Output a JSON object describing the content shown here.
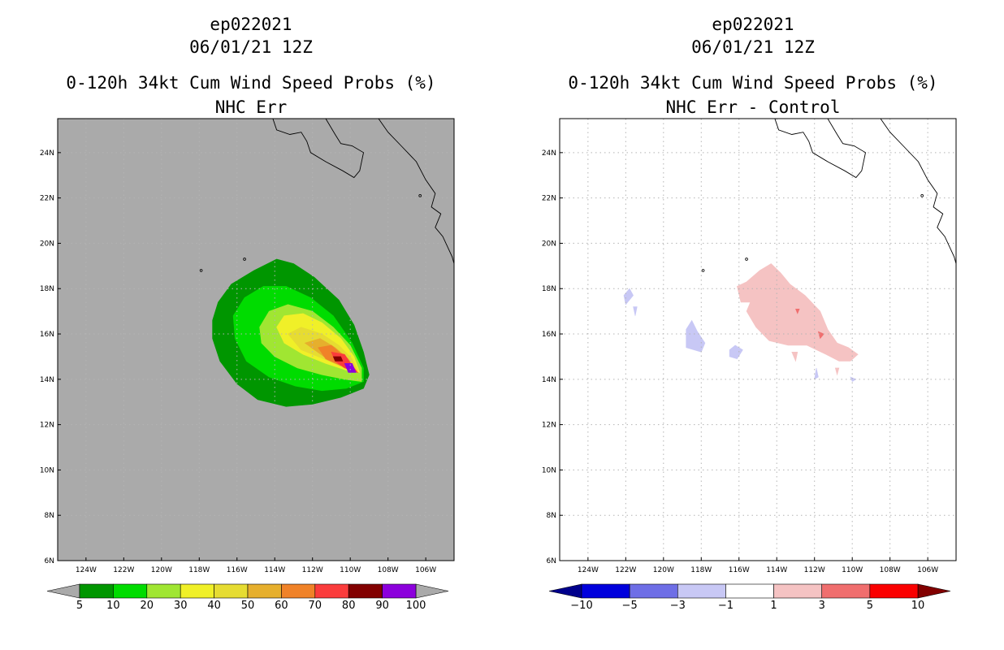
{
  "chart_data": [
    {
      "type": "heatmap",
      "panel": "left",
      "title_lines": [
        "ep022021",
        "06/01/21 12Z",
        "0-120h 34kt Cum Wind Speed Probs (%)",
        "NHC Err"
      ],
      "xlim": [
        -125.5,
        -104.5
      ],
      "ylim": [
        6,
        25.5
      ],
      "xticks": [
        -124,
        -122,
        -120,
        -118,
        -116,
        -114,
        -112,
        -110,
        -108,
        -106
      ],
      "xtick_labels": [
        "124W",
        "122W",
        "120W",
        "118W",
        "116W",
        "114W",
        "112W",
        "110W",
        "108W",
        "106W"
      ],
      "yticks": [
        6,
        8,
        10,
        12,
        14,
        16,
        18,
        20,
        22,
        24
      ],
      "ytick_labels": [
        "6N",
        "8N",
        "10N",
        "12N",
        "14N",
        "16N",
        "18N",
        "20N",
        "22N",
        "24N"
      ],
      "background": "#aaaaaa",
      "colorbar": {
        "levels": [
          "5",
          "10",
          "20",
          "30",
          "40",
          "50",
          "60",
          "70",
          "80",
          "90",
          "100"
        ],
        "colors": [
          "#009600",
          "#00dc00",
          "#a0e632",
          "#f0f028",
          "#e6dc32",
          "#e6af2d",
          "#f08228",
          "#fa3c3c",
          "#820000",
          "#8c00dc"
        ],
        "under_color": "#aaaaaa",
        "over_color": "#aaaaaa"
      },
      "contours": [
        {
          "level": 5,
          "color": "#009600",
          "points": [
            [
              -117.3,
              16.6
            ],
            [
              -117,
              17.4
            ],
            [
              -116.3,
              18.2
            ],
            [
              -115.1,
              18.8
            ],
            [
              -113.9,
              19.3
            ],
            [
              -113,
              19.1
            ],
            [
              -111.9,
              18.5
            ],
            [
              -110.6,
              17.5
            ],
            [
              -109.8,
              16.4
            ],
            [
              -109.3,
              15.2
            ],
            [
              -109,
              14.2
            ],
            [
              -109.3,
              13.6
            ],
            [
              -110.5,
              13.2
            ],
            [
              -112,
              12.9
            ],
            [
              -113.4,
              12.8
            ],
            [
              -114.9,
              13.1
            ],
            [
              -116,
              13.8
            ],
            [
              -116.9,
              14.8
            ],
            [
              -117.3,
              15.8
            ]
          ]
        },
        {
          "level": 10,
          "color": "#00dc00",
          "points": [
            [
              -116.2,
              16.8
            ],
            [
              -115.6,
              17.6
            ],
            [
              -114.6,
              18.1
            ],
            [
              -113.4,
              18.1
            ],
            [
              -112.1,
              17.6
            ],
            [
              -110.9,
              16.8
            ],
            [
              -109.9,
              15.6
            ],
            [
              -109.3,
              14.5
            ],
            [
              -109.3,
              13.9
            ],
            [
              -110.2,
              13.6
            ],
            [
              -111.5,
              13.5
            ],
            [
              -112.9,
              13.7
            ],
            [
              -114.3,
              14.1
            ],
            [
              -115.5,
              14.8
            ],
            [
              -116.1,
              15.8
            ]
          ]
        },
        {
          "level": 20,
          "color": "#a0e632",
          "points": [
            [
              -114.8,
              16.3
            ],
            [
              -114.3,
              17
            ],
            [
              -113.3,
              17.3
            ],
            [
              -112,
              17
            ],
            [
              -110.9,
              16.3
            ],
            [
              -110,
              15.5
            ],
            [
              -109.4,
              14.5
            ],
            [
              -109.4,
              13.9
            ],
            [
              -110.3,
              14
            ],
            [
              -111.5,
              14.2
            ],
            [
              -112.8,
              14.5
            ],
            [
              -114,
              15
            ],
            [
              -114.7,
              15.6
            ]
          ]
        },
        {
          "level": 30,
          "color": "#f0f028",
          "points": [
            [
              -113.9,
              16.3
            ],
            [
              -113.5,
              16.8
            ],
            [
              -112.5,
              16.9
            ],
            [
              -111.5,
              16.5
            ],
            [
              -110.5,
              15.8
            ],
            [
              -109.8,
              15
            ],
            [
              -109.5,
              14.3
            ],
            [
              -110.2,
              14.4
            ],
            [
              -111.3,
              14.7
            ],
            [
              -112.5,
              15.1
            ],
            [
              -113.5,
              15.6
            ]
          ]
        },
        {
          "level": 40,
          "color": "#e6dc32",
          "points": [
            [
              -113.3,
              16
            ],
            [
              -112.6,
              16.3
            ],
            [
              -111.5,
              16
            ],
            [
              -110.6,
              15.5
            ],
            [
              -109.9,
              14.9
            ],
            [
              -109.6,
              14.4
            ],
            [
              -110.3,
              14.5
            ],
            [
              -111.4,
              14.9
            ],
            [
              -112.6,
              15.3
            ]
          ]
        },
        {
          "level": 50,
          "color": "#e6af2d",
          "points": [
            [
              -112.4,
              15.6
            ],
            [
              -111.6,
              15.8
            ],
            [
              -110.8,
              15.4
            ],
            [
              -110.1,
              14.9
            ],
            [
              -109.7,
              14.4
            ],
            [
              -110.4,
              14.6
            ],
            [
              -111.4,
              15
            ]
          ]
        },
        {
          "level": 60,
          "color": "#f08228",
          "points": [
            [
              -111.7,
              15.4
            ],
            [
              -111,
              15.5
            ],
            [
              -110.3,
              15
            ],
            [
              -109.8,
              14.5
            ],
            [
              -110.5,
              14.6
            ],
            [
              -111.3,
              14.9
            ]
          ]
        },
        {
          "level": 70,
          "color": "#fa3c3c",
          "points": [
            [
              -111,
              15.2
            ],
            [
              -110.3,
              15.1
            ],
            [
              -109.9,
              14.6
            ],
            [
              -109.6,
              14.3
            ],
            [
              -110.3,
              14.5
            ],
            [
              -110.8,
              14.8
            ]
          ]
        },
        {
          "level": 80,
          "color": "#820000",
          "points": [
            [
              -110.9,
              15
            ],
            [
              -110.5,
              15
            ],
            [
              -110.4,
              14.8
            ],
            [
              -110.8,
              14.8
            ]
          ]
        },
        {
          "level": 90,
          "color": "#8c00dc",
          "points": [
            [
              -110.3,
              14.7
            ],
            [
              -109.9,
              14.7
            ],
            [
              -109.7,
              14.3
            ],
            [
              -110.1,
              14.3
            ]
          ]
        }
      ]
    },
    {
      "type": "heatmap",
      "panel": "right",
      "title_lines": [
        "ep022021",
        "06/01/21 12Z",
        "0-120h 34kt Cum Wind Speed Probs (%)",
        "NHC Err - Control"
      ],
      "xlim": [
        -125.5,
        -104.5
      ],
      "ylim": [
        6,
        25.5
      ],
      "xticks": [
        -124,
        -122,
        -120,
        -118,
        -116,
        -114,
        -112,
        -110,
        -108,
        -106
      ],
      "xtick_labels": [
        "124W",
        "122W",
        "120W",
        "118W",
        "116W",
        "114W",
        "112W",
        "110W",
        "108W",
        "106W"
      ],
      "yticks": [
        6,
        8,
        10,
        12,
        14,
        16,
        18,
        20,
        22,
        24
      ],
      "ytick_labels": [
        "6N",
        "8N",
        "10N",
        "12N",
        "14N",
        "16N",
        "18N",
        "20N",
        "22N",
        "24N"
      ],
      "background": "#ffffff",
      "colorbar": {
        "levels": [
          "-10",
          "-5",
          "-3",
          "-1",
          "1",
          "3",
          "5",
          "10"
        ],
        "colors": [
          "#0000dc",
          "#6e6ee6",
          "#c8c8f5",
          "#ffffff",
          "#f5c3c3",
          "#f06e6e",
          "#fa0000"
        ],
        "under_color": "#00008c",
        "over_color": "#820000"
      },
      "contours": [
        {
          "level": 1,
          "color": "#f5c3c3",
          "points": [
            [
              -116.1,
              18.1
            ],
            [
              -115.6,
              18.3
            ],
            [
              -114.9,
              18.8
            ],
            [
              -114.3,
              19.1
            ],
            [
              -113.8,
              18.7
            ],
            [
              -113.3,
              18.2
            ],
            [
              -112.5,
              17.7
            ],
            [
              -111.7,
              17
            ],
            [
              -111.3,
              16.2
            ],
            [
              -110.8,
              15.6
            ],
            [
              -110.2,
              15.4
            ],
            [
              -109.7,
              15.1
            ],
            [
              -110.1,
              14.8
            ],
            [
              -110.7,
              14.8
            ],
            [
              -111.4,
              15.1
            ],
            [
              -112.4,
              15.5
            ],
            [
              -113.4,
              15.5
            ],
            [
              -114.4,
              15.7
            ],
            [
              -115.1,
              16.3
            ],
            [
              -115.6,
              17
            ],
            [
              -115.4,
              17.4
            ],
            [
              -115.9,
              17.4
            ]
          ]
        },
        {
          "level": 1,
          "color": "#f5c3c3",
          "points": [
            [
              -113.2,
              15.2
            ],
            [
              -112.9,
              15.2
            ],
            [
              -113,
              14.8
            ]
          ]
        },
        {
          "level": 1,
          "color": "#f5c3c3",
          "points": [
            [
              -110.9,
              14.5
            ],
            [
              -110.7,
              14.5
            ],
            [
              -110.8,
              14.2
            ]
          ]
        },
        {
          "level": 3,
          "color": "#f06e6e",
          "points": [
            [
              -113,
              17.1
            ],
            [
              -112.8,
              17.1
            ],
            [
              -112.9,
              16.9
            ]
          ]
        },
        {
          "level": 3,
          "color": "#f06e6e",
          "points": [
            [
              -111.8,
              16.1
            ],
            [
              -111.5,
              16
            ],
            [
              -111.7,
              15.8
            ]
          ]
        },
        {
          "level": -1,
          "color": "#c8c8f5",
          "points": [
            [
              -122.1,
              17.7
            ],
            [
              -121.8,
              18
            ],
            [
              -121.6,
              17.7
            ],
            [
              -122,
              17.3
            ]
          ]
        },
        {
          "level": -1,
          "color": "#c8c8f5",
          "points": [
            [
              -121.6,
              17.2
            ],
            [
              -121.4,
              17.2
            ],
            [
              -121.5,
              16.8
            ]
          ]
        },
        {
          "level": -1,
          "color": "#c8c8f5",
          "points": [
            [
              -118.8,
              16.2
            ],
            [
              -118.5,
              16.6
            ],
            [
              -118.2,
              16.1
            ],
            [
              -117.8,
              15.6
            ],
            [
              -118,
              15.2
            ],
            [
              -118.8,
              15.4
            ]
          ]
        },
        {
          "level": -1,
          "color": "#c8c8f5",
          "points": [
            [
              -116.5,
              15.3
            ],
            [
              -116.2,
              15.5
            ],
            [
              -115.8,
              15.3
            ],
            [
              -116.1,
              14.9
            ],
            [
              -116.5,
              15
            ]
          ]
        },
        {
          "level": -1,
          "color": "#c8c8f5",
          "points": [
            [
              -111.9,
              14.5
            ],
            [
              -111.8,
              14.1
            ],
            [
              -112,
              14
            ]
          ]
        },
        {
          "level": -1,
          "color": "#c8c8f5",
          "points": [
            [
              -110.1,
              14.1
            ],
            [
              -109.8,
              14
            ],
            [
              -110,
              13.9
            ]
          ]
        }
      ]
    }
  ],
  "coastline": [
    [
      -114.1,
      25.5
    ],
    [
      -113.9,
      25
    ],
    [
      -113.2,
      24.8
    ],
    [
      -112.6,
      24.9
    ],
    [
      -112.3,
      24.5
    ],
    [
      -112.1,
      24
    ],
    [
      -111.3,
      23.6
    ],
    [
      -110.4,
      23.2
    ],
    [
      -109.8,
      22.9
    ],
    [
      -109.5,
      23.2
    ],
    [
      -109.3,
      24
    ],
    [
      -109.9,
      24.3
    ],
    [
      -110.5,
      24.4
    ],
    [
      -110.8,
      24.8
    ],
    [
      -111.3,
      25.5
    ]
  ],
  "mainland": [
    [
      -108.5,
      25.5
    ],
    [
      -108,
      24.9
    ],
    [
      -107.3,
      24.3
    ],
    [
      -106.5,
      23.6
    ],
    [
      -106,
      22.8
    ],
    [
      -105.5,
      22.2
    ],
    [
      -105.7,
      21.6
    ],
    [
      -105.2,
      21.3
    ],
    [
      -105.5,
      20.7
    ],
    [
      -105.1,
      20.3
    ],
    [
      -104.6,
      19.4
    ],
    [
      -104.5,
      19.1
    ]
  ]
}
